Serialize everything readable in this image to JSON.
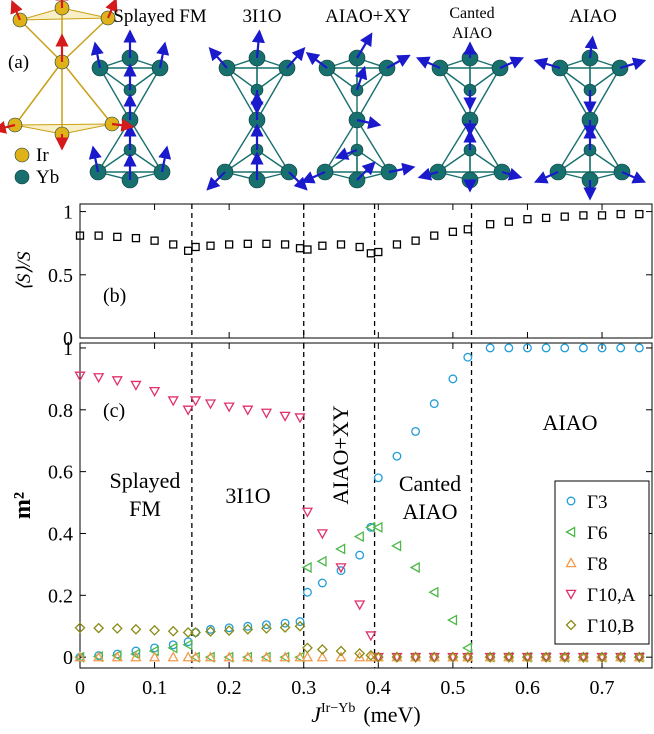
{
  "panel_a": {
    "label": "(a)",
    "phase_labels": [
      [
        "Splayed FM"
      ],
      [
        "3I1O"
      ],
      [
        "AIAO+XY"
      ],
      [
        "Canted",
        "AIAO"
      ],
      [
        "AIAO"
      ]
    ],
    "legend": [
      "Ir",
      "Yb"
    ]
  },
  "chart_data": [
    {
      "type": "scatter",
      "panel_label": "(b)",
      "y_label": "⟨S⟩/S",
      "marker": "square",
      "color": "#000000",
      "x": [
        0,
        0.025,
        0.05,
        0.075,
        0.1,
        0.125,
        0.145,
        0.155,
        0.175,
        0.2,
        0.225,
        0.25,
        0.275,
        0.295,
        0.305,
        0.325,
        0.35,
        0.375,
        0.39,
        0.4,
        0.425,
        0.45,
        0.475,
        0.5,
        0.52,
        0.55,
        0.575,
        0.6,
        0.625,
        0.65,
        0.675,
        0.7,
        0.725,
        0.75
      ],
      "values": [
        0.81,
        0.81,
        0.8,
        0.79,
        0.77,
        0.74,
        0.69,
        0.72,
        0.73,
        0.74,
        0.745,
        0.745,
        0.74,
        0.71,
        0.7,
        0.73,
        0.74,
        0.72,
        0.67,
        0.68,
        0.74,
        0.77,
        0.81,
        0.84,
        0.86,
        0.9,
        0.92,
        0.94,
        0.95,
        0.96,
        0.97,
        0.97,
        0.98,
        0.98
      ],
      "xlim": [
        0,
        0.767
      ],
      "ylim": [
        0,
        1.06
      ],
      "xticks": [
        0,
        0.1,
        0.2,
        0.3,
        0.4,
        0.5,
        0.6,
        0.7
      ],
      "yticks": [
        0,
        0.5,
        1
      ],
      "boundaries": [
        0.15,
        0.3,
        0.395,
        0.525
      ]
    },
    {
      "type": "scatter",
      "panel_label": "(c)",
      "y_label": "m²",
      "x_label": "J",
      "x_label_sup": "Ir−Yb",
      "x_label_unit": "(meV)",
      "annotations": [
        [
          "Splayed",
          "FM"
        ],
        [
          "3I1O"
        ],
        [
          "AIAO+XY"
        ],
        [
          "Canted",
          "AIAO"
        ],
        [
          "AIAO"
        ]
      ],
      "legend_position": "lower right",
      "x": [
        0,
        0.025,
        0.05,
        0.075,
        0.1,
        0.125,
        0.145,
        0.155,
        0.175,
        0.2,
        0.225,
        0.25,
        0.275,
        0.295,
        0.305,
        0.325,
        0.35,
        0.375,
        0.39,
        0.4,
        0.425,
        0.45,
        0.475,
        0.5,
        0.52,
        0.55,
        0.575,
        0.6,
        0.625,
        0.65,
        0.675,
        0.7,
        0.725,
        0.75
      ],
      "series": [
        {
          "name": "Γ3",
          "color": "#1f9dd9",
          "marker": "circle",
          "values": [
            0,
            0.005,
            0.01,
            0.02,
            0.03,
            0.04,
            0.05,
            0.08,
            0.09,
            0.095,
            0.1,
            0.105,
            0.11,
            0.115,
            0.21,
            0.24,
            0.28,
            0.33,
            0.42,
            0.58,
            0.65,
            0.73,
            0.82,
            0.9,
            0.97,
            1,
            1,
            1,
            1,
            1,
            1,
            1,
            1,
            1
          ]
        },
        {
          "name": "Γ6",
          "color": "#4cb848",
          "marker": "left-triangle",
          "values": [
            0,
            0.002,
            0.005,
            0.01,
            0.02,
            0.03,
            0.04,
            0,
            0,
            0,
            0,
            0,
            0,
            0,
            0.29,
            0.31,
            0.35,
            0.39,
            0.42,
            0.42,
            0.36,
            0.29,
            0.21,
            0.12,
            0.03,
            0,
            0,
            0,
            0,
            0,
            0,
            0,
            0,
            0
          ]
        },
        {
          "name": "Γ8",
          "color": "#f39a4c",
          "marker": "up-triangle",
          "values": [
            0,
            0,
            0,
            0,
            0,
            0,
            0,
            0,
            0,
            0,
            0,
            0,
            0,
            0,
            0,
            0,
            0,
            0,
            0,
            0,
            0,
            0,
            0,
            0,
            0,
            0,
            0,
            0,
            0,
            0,
            0,
            0,
            0,
            0
          ]
        },
        {
          "name": "Γ10,A",
          "color": "#e0306a",
          "marker": "down-triangle",
          "values": [
            0.91,
            0.905,
            0.895,
            0.88,
            0.86,
            0.83,
            0.8,
            0.83,
            0.82,
            0.81,
            0.8,
            0.79,
            0.78,
            0.775,
            0.47,
            0.4,
            0.29,
            0.17,
            0.07,
            0,
            0,
            0,
            0,
            0,
            0,
            0,
            0,
            0,
            0,
            0,
            0,
            0,
            0,
            0
          ]
        },
        {
          "name": "Γ10,B",
          "color": "#8a8a14",
          "marker": "diamond",
          "values": [
            0.095,
            0.094,
            0.093,
            0.09,
            0.087,
            0.084,
            0.08,
            0.08,
            0.083,
            0.086,
            0.09,
            0.093,
            0.096,
            0.1,
            0.03,
            0.025,
            0.02,
            0.012,
            0.006,
            0,
            0,
            0,
            0,
            0,
            0,
            0,
            0,
            0,
            0,
            0,
            0,
            0,
            0,
            0
          ]
        }
      ],
      "xlim": [
        0,
        0.767
      ],
      "ylim": [
        -0.035,
        1.016
      ],
      "xticks": [
        0,
        0.1,
        0.2,
        0.3,
        0.4,
        0.5,
        0.6,
        0.7
      ],
      "yticks": [
        0,
        0.2,
        0.4,
        0.6,
        0.8,
        1
      ],
      "boundaries": [
        0.15,
        0.3,
        0.395,
        0.525
      ]
    }
  ]
}
